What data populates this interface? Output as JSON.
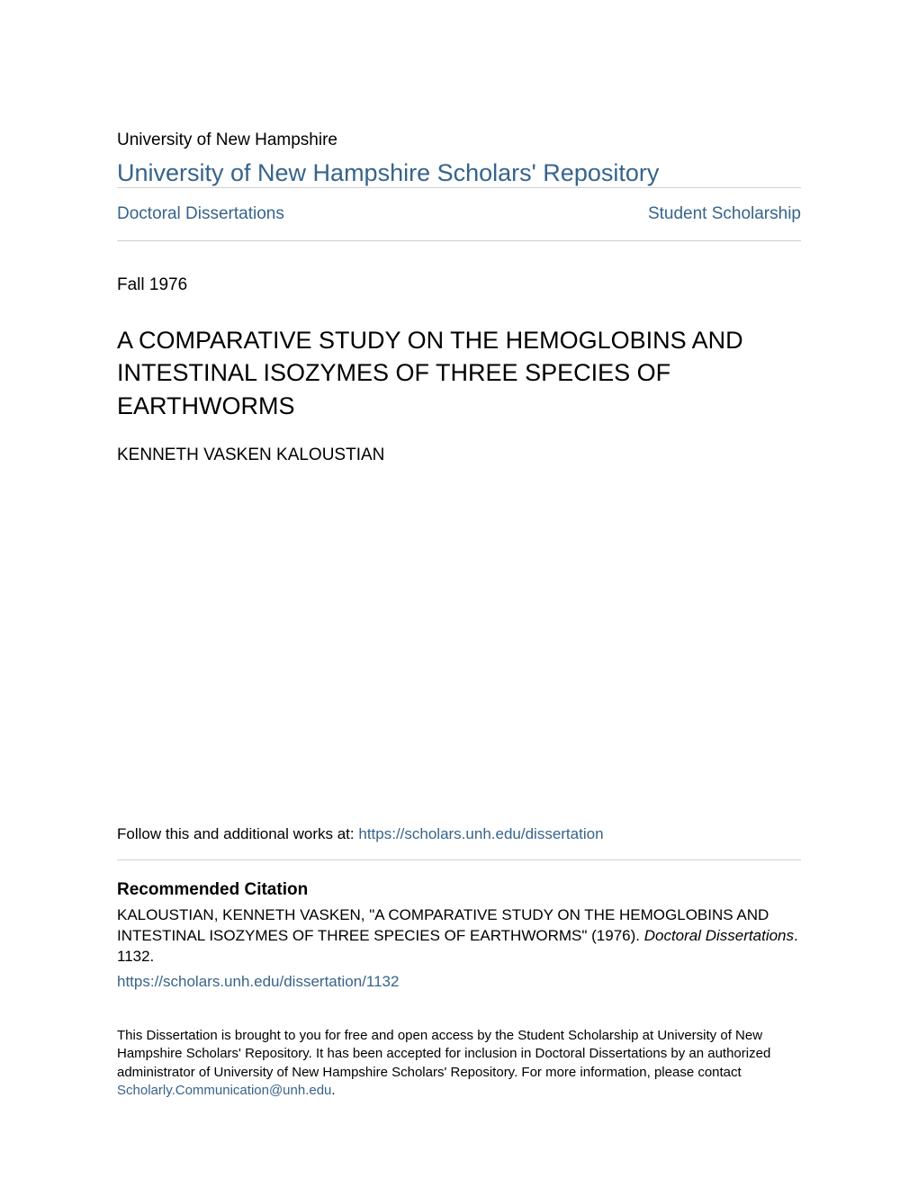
{
  "colors": {
    "link_color": "#36648b",
    "text_color": "#000000",
    "divider_color": "#d0d0d0",
    "background_color": "#ffffff"
  },
  "typography": {
    "font_family": "Arial, Helvetica, sans-serif",
    "institution_fontsize": 19,
    "repository_fontsize": 27,
    "nav_fontsize": 19,
    "title_fontsize": 27,
    "author_fontsize": 19,
    "body_fontsize": 17,
    "footer_fontsize": 15
  },
  "header": {
    "institution": "University of New Hampshire",
    "repository_title": "University of New Hampshire Scholars' Repository"
  },
  "nav": {
    "left": "Doctoral Dissertations",
    "right": "Student Scholarship"
  },
  "meta": {
    "date": "Fall 1976"
  },
  "paper": {
    "title": "A COMPARATIVE STUDY ON THE HEMOGLOBINS AND INTESTINAL ISOZYMES OF THREE SPECIES OF EARTHWORMS",
    "author": "KENNETH VASKEN KALOUSTIAN"
  },
  "follow": {
    "prefix": "Follow this and additional works at: ",
    "url": "https://scholars.unh.edu/dissertation"
  },
  "citation": {
    "heading": "Recommended Citation",
    "text_part1": "KALOUSTIAN, KENNETH VASKEN, \"A COMPARATIVE STUDY ON THE HEMOGLOBINS AND INTESTINAL ISOZYMES OF THREE SPECIES OF EARTHWORMS\" (1976). ",
    "text_italic": "Doctoral Dissertations",
    "text_part2": ". 1132.",
    "link": "https://scholars.unh.edu/dissertation/1132"
  },
  "footer": {
    "text_part1": "This Dissertation is brought to you for free and open access by the Student Scholarship at University of New Hampshire Scholars' Repository. It has been accepted for inclusion in Doctoral Dissertations by an authorized administrator of University of New Hampshire Scholars' Repository. For more information, please contact ",
    "email": "Scholarly.Communication@unh.edu",
    "text_part2": "."
  }
}
